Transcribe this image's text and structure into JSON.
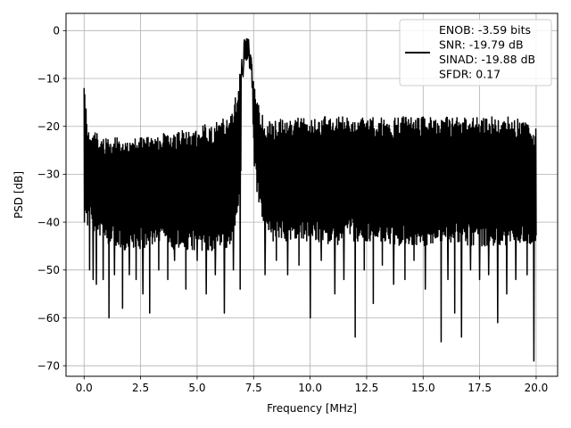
{
  "chart_data": {
    "type": "line",
    "xlabel": "Frequency [MHz]",
    "ylabel": "PSD [dB]",
    "xlim": [
      -0.8,
      20.95
    ],
    "ylim": [
      -72.2,
      3.6
    ],
    "grid": true,
    "xticks": [
      0.0,
      2.5,
      5.0,
      7.5,
      10.0,
      12.5,
      15.0,
      17.5,
      20.0
    ],
    "xtick_labels": [
      "0.0",
      "2.5",
      "5.0",
      "7.5",
      "10.0",
      "12.5",
      "15.0",
      "17.5",
      "20.0"
    ],
    "yticks": [
      0,
      -10,
      -20,
      -30,
      -40,
      -50,
      -60,
      -70
    ],
    "ytick_labels": [
      "0",
      "−10",
      "−20",
      "−30",
      "−40",
      "−50",
      "−60",
      "−70"
    ],
    "series": [
      {
        "color": "#000000",
        "x_range": [
          0,
          20
        ],
        "upper_envelope_x": [
          0.0,
          0.2,
          1.0,
          2.0,
          3.0,
          4.0,
          5.0,
          6.0,
          6.5,
          6.8,
          7.0,
          7.1,
          7.2,
          7.35,
          7.6,
          8.0,
          9.0,
          10.0,
          11.0,
          12.0,
          13.0,
          14.0,
          15.0,
          16.0,
          17.0,
          18.0,
          19.0,
          20.0
        ],
        "upper_envelope_y": [
          -12,
          -21,
          -22,
          -22,
          -22,
          -21,
          -20,
          -19,
          -17,
          -12,
          -5,
          -1,
          0,
          -3,
          -14,
          -19,
          -18,
          -18,
          -18,
          -18,
          -18,
          -18,
          -18,
          -18,
          -18,
          -18,
          -18,
          -20
        ],
        "lower_envelope_x": [
          0.0,
          1.0,
          2.0,
          3.0,
          4.0,
          5.0,
          6.0,
          6.5,
          6.8,
          7.0,
          7.1,
          7.3,
          7.6,
          8.0,
          9.0,
          10.0,
          11.0,
          12.0,
          13.0,
          14.0,
          15.0,
          16.0,
          17.0,
          18.0,
          19.0,
          20.0
        ],
        "lower_envelope_y": [
          -40,
          -45,
          -46,
          -45,
          -46,
          -46,
          -46,
          -45,
          -40,
          -25,
          -15,
          -12,
          -33,
          -44,
          -44,
          -44,
          -45,
          -44,
          -44,
          -45,
          -45,
          -44,
          -45,
          -45,
          -45,
          -45
        ],
        "dips": [
          {
            "x": 0.25,
            "y": -50
          },
          {
            "x": 0.4,
            "y": -52
          },
          {
            "x": 0.55,
            "y": -53
          },
          {
            "x": 0.85,
            "y": -52
          },
          {
            "x": 1.1,
            "y": -60
          },
          {
            "x": 1.35,
            "y": -51
          },
          {
            "x": 1.7,
            "y": -58
          },
          {
            "x": 2.0,
            "y": -51
          },
          {
            "x": 2.3,
            "y": -52
          },
          {
            "x": 2.6,
            "y": -55
          },
          {
            "x": 2.9,
            "y": -59
          },
          {
            "x": 3.3,
            "y": -50
          },
          {
            "x": 3.7,
            "y": -52
          },
          {
            "x": 4.0,
            "y": -48
          },
          {
            "x": 4.5,
            "y": -54
          },
          {
            "x": 5.0,
            "y": -48
          },
          {
            "x": 5.4,
            "y": -55
          },
          {
            "x": 5.8,
            "y": -51
          },
          {
            "x": 6.2,
            "y": -59
          },
          {
            "x": 6.6,
            "y": -50
          },
          {
            "x": 6.9,
            "y": -54
          },
          {
            "x": 8.0,
            "y": -51
          },
          {
            "x": 8.5,
            "y": -48
          },
          {
            "x": 9.0,
            "y": -51
          },
          {
            "x": 9.5,
            "y": -49
          },
          {
            "x": 10.0,
            "y": -60
          },
          {
            "x": 10.5,
            "y": -48
          },
          {
            "x": 11.1,
            "y": -55
          },
          {
            "x": 11.5,
            "y": -52
          },
          {
            "x": 12.0,
            "y": -64
          },
          {
            "x": 12.4,
            "y": -50
          },
          {
            "x": 12.8,
            "y": -57
          },
          {
            "x": 13.2,
            "y": -49
          },
          {
            "x": 13.7,
            "y": -53
          },
          {
            "x": 14.2,
            "y": -52
          },
          {
            "x": 14.6,
            "y": -48
          },
          {
            "x": 15.1,
            "y": -54
          },
          {
            "x": 15.8,
            "y": -65
          },
          {
            "x": 16.1,
            "y": -52
          },
          {
            "x": 16.4,
            "y": -59
          },
          {
            "x": 16.7,
            "y": -64
          },
          {
            "x": 17.1,
            "y": -50
          },
          {
            "x": 17.5,
            "y": -52
          },
          {
            "x": 17.9,
            "y": -51
          },
          {
            "x": 18.3,
            "y": -61
          },
          {
            "x": 18.7,
            "y": -55
          },
          {
            "x": 19.1,
            "y": -52
          },
          {
            "x": 19.6,
            "y": -51
          },
          {
            "x": 19.9,
            "y": -69
          }
        ]
      }
    ],
    "legend": {
      "position": "top-right",
      "lines": [
        "ENOB: -3.59 bits",
        "SNR: -19.79 dB",
        "SINAD: -19.88 dB",
        "SFDR: 0.17"
      ]
    }
  }
}
